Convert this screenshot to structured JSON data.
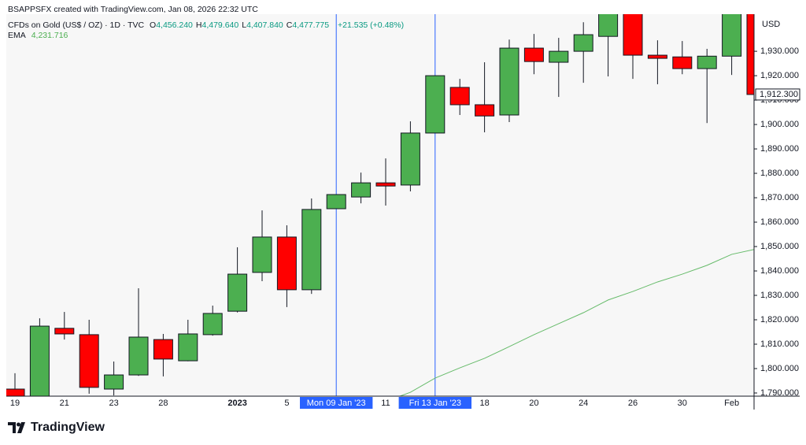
{
  "header": {
    "credit": "BSAPPSFX created with TradingView.com, Jan 08, 2026 22:32 UTC",
    "symbol": "CFDs on Gold (US$ / OZ) · 1D · TVC",
    "ohlc": [
      {
        "label": "O",
        "value": "4,456.240"
      },
      {
        "label": "H",
        "value": "4,479.640"
      },
      {
        "label": "L",
        "value": "4,407.840"
      },
      {
        "label": "C",
        "value": "4,477.775"
      }
    ],
    "change": "+21.535 (+0.48%)",
    "indicator": {
      "name": "EMA",
      "value": "4,231.716"
    }
  },
  "logo": "TradingView",
  "chart_data": {
    "type": "candlestick",
    "currency": "USD",
    "categories": [
      "19",
      null,
      "21",
      null,
      "23",
      null,
      "28",
      null,
      null,
      "2023",
      null,
      "5",
      null,
      "Mon 09 Jan '23",
      null,
      "11",
      null,
      "Fri 13 Jan '23",
      null,
      "18",
      null,
      "20",
      null,
      "24",
      null,
      "26",
      null,
      "30",
      null,
      "Feb",
      null
    ],
    "highlighted_categories": [
      13,
      17
    ],
    "open": [
      1791.6,
      1788,
      1816.5,
      1813.9,
      1791.6,
      1797.4,
      1811.9,
      1803.2,
      1813.9,
      1823.5,
      1839.4,
      1853.9,
      1832.3,
      1865.5,
      1870.3,
      1876.1,
      1875.2,
      1896.5,
      1915.2,
      1908.1,
      1903.9,
      1931.3,
      1925.5,
      1930,
      1936.1,
      1948,
      1928.4,
      1927.7,
      1922.9,
      1928,
      1950
    ],
    "high": [
      1798.1,
      1820.6,
      1823.2,
      1820,
      1802.9,
      1832.9,
      1814.2,
      1820,
      1825.8,
      1849.7,
      1864.8,
      1858.7,
      1869.7,
      1871.3,
      1880.3,
      1886.1,
      1901.3,
      1920,
      1918.7,
      1925.5,
      1934.8,
      1937.1,
      1935.5,
      1941.9,
      1950,
      1951,
      1934.5,
      1934.2,
      1931,
      1952,
      1952
    ],
    "low": [
      1786,
      1786,
      1811.9,
      1789.7,
      1789,
      1797,
      1796.8,
      1803,
      1813.5,
      1823,
      1835.8,
      1825.2,
      1830.6,
      1865.5,
      1867.7,
      1866.8,
      1872.6,
      1896.5,
      1903.9,
      1896.8,
      1901,
      1920.6,
      1911.3,
      1917.1,
      1919.7,
      1918.7,
      1916.5,
      1920.6,
      1900.6,
      1920.3,
      1905
    ],
    "close": [
      1788,
      1817.4,
      1814.2,
      1792.3,
      1797.4,
      1812.9,
      1803.9,
      1814.2,
      1822.6,
      1838.7,
      1853.9,
      1832.3,
      1865.2,
      1871.3,
      1876.1,
      1874.8,
      1896.5,
      1920,
      1908.1,
      1903.5,
      1931.3,
      1925.8,
      1930,
      1936.8,
      1947,
      1928.4,
      1927.1,
      1922.9,
      1928,
      1948,
      1912.3
    ],
    "up_color": "#4caf50",
    "down_color": "#ff0000",
    "ema": {
      "name": "EMA",
      "color": "#66bb6a",
      "values": [
        null,
        null,
        null,
        null,
        null,
        null,
        null,
        null,
        null,
        null,
        null,
        null,
        null,
        null,
        null,
        1786.5,
        1790.3,
        1796.1,
        1800.3,
        1804.2,
        1809,
        1813.9,
        1818.4,
        1822.9,
        1828.1,
        1831.6,
        1835.5,
        1838.7,
        1842.3,
        1846.8,
        1849
      ]
    },
    "last_price": {
      "value": 1912.3,
      "label": "1,912.300"
    },
    "ylim": [
      1788.7,
      1945.2
    ],
    "yticks": [
      {
        "value": 1790,
        "label": "1,790.000"
      },
      {
        "value": 1800,
        "label": "1,800.000"
      },
      {
        "value": 1810,
        "label": "1,810.000"
      },
      {
        "value": 1820,
        "label": "1,820.000"
      },
      {
        "value": 1830,
        "label": "1,830.000"
      },
      {
        "value": 1840,
        "label": "1,840.000"
      },
      {
        "value": 1850,
        "label": "1,850.000"
      },
      {
        "value": 1860,
        "label": "1,860.000"
      },
      {
        "value": 1870,
        "label": "1,870.000"
      },
      {
        "value": 1880,
        "label": "1,880.000"
      },
      {
        "value": 1890,
        "label": "1,890.000"
      },
      {
        "value": 1900,
        "label": "1,900.000"
      },
      {
        "value": 1910,
        "label": "1,910.000"
      },
      {
        "value": 1920,
        "label": "1,920.000"
      },
      {
        "value": 1930,
        "label": "1,930.000"
      }
    ],
    "grid": false
  }
}
